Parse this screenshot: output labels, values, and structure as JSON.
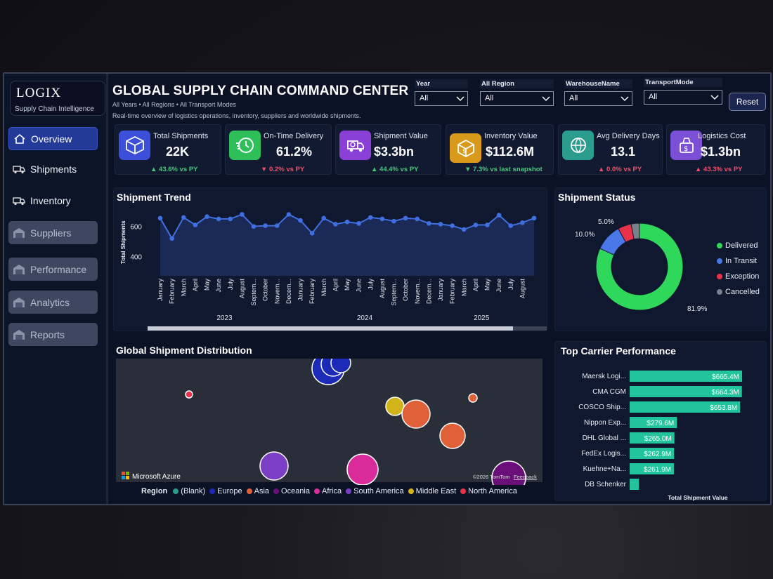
{
  "brand": {
    "title": "LOGIX",
    "subtitle": "Supply Chain Intelligence"
  },
  "nav": [
    {
      "label": "Overview",
      "state": "active",
      "icon": "home-icon"
    },
    {
      "label": "Shipments",
      "state": "normal",
      "icon": "truck-icon"
    },
    {
      "label": "Inventory",
      "state": "normal",
      "icon": "truck-icon"
    },
    {
      "label": "Suppliers",
      "state": "disabled",
      "icon": "warehouse-icon"
    },
    {
      "label": "Performance",
      "state": "disabled",
      "icon": "warehouse-icon"
    },
    {
      "label": "Analytics",
      "state": "disabled",
      "icon": "warehouse-icon"
    },
    {
      "label": "Reports",
      "state": "disabled",
      "icon": "warehouse-icon"
    }
  ],
  "header": {
    "title": "GLOBAL SUPPLY CHAIN COMMAND CENTER",
    "filters_summary": "All Years • All Regions • All Transport Modes",
    "description": "Real-time overview of logistics operations, inventory, suppliers and worldwide shipments."
  },
  "filters": [
    {
      "label": "Year",
      "value": "All"
    },
    {
      "label": "All Region",
      "value": "All"
    },
    {
      "label": "WarehouseName",
      "value": "All"
    },
    {
      "label": "TransportMode",
      "value": "All"
    }
  ],
  "reset_label": "Reset",
  "kpis": [
    {
      "label": "Total Shipments",
      "value": "22K",
      "delta": "▲ 43.6% vs PY",
      "trend": "up",
      "color": "#3b4fd8",
      "icon": "box-icon"
    },
    {
      "label": "On-Time Delivery",
      "value": "61.2%",
      "delta": "▼ 0.2% vs PY",
      "trend": "down",
      "color": "#2fbf58",
      "icon": "clock-icon"
    },
    {
      "label": "Shipment Value",
      "value": "$3.3bn",
      "delta": "▲ 44.4% vs PY",
      "trend": "up",
      "color": "#8a3fd6",
      "icon": "delivery-truck-icon"
    },
    {
      "label": "Inventory Value",
      "value": "$112.6M",
      "delta": "▼ 7.3% vs last snapshot",
      "trend": "down-green",
      "color": "#d99a1c",
      "icon": "package-icon"
    },
    {
      "label": "Avg Delivery Days",
      "value": "13.1",
      "delta": "▲ 0.0% vs PY",
      "trend": "down",
      "color": "#2a9d8f",
      "icon": "globe-clock-icon"
    },
    {
      "label": "Logistics Cost",
      "value": "$1.3bn",
      "delta": "▲ 43.3% vs PY",
      "trend": "down",
      "color": "#7b4fd6",
      "icon": "money-icon"
    }
  ],
  "trend": {
    "title": "Shipment Trend",
    "ylabel": "Total Shipments",
    "color": "#3f6fe0",
    "chart_data": {
      "type": "area",
      "y_ticks": [
        400,
        600
      ],
      "ylim": [
        300,
        720
      ],
      "years": [
        {
          "label": "2023",
          "months": [
            "January",
            "February",
            "March",
            "April",
            "May",
            "June",
            "July",
            "August",
            "Septem...",
            "October",
            "Novem...",
            "Decem..."
          ]
        },
        {
          "label": "2024",
          "months": [
            "January",
            "February",
            "March",
            "April",
            "May",
            "June",
            "July",
            "August",
            "Septem...",
            "October",
            "Novem...",
            "Decem..."
          ]
        },
        {
          "label": "2025",
          "months": [
            "January",
            "February",
            "March",
            "April",
            "May",
            "June",
            "July",
            "August"
          ]
        }
      ],
      "values": [
        660,
        525,
        665,
        615,
        670,
        655,
        655,
        685,
        605,
        610,
        610,
        685,
        645,
        560,
        660,
        620,
        635,
        625,
        665,
        655,
        640,
        660,
        655,
        625,
        620,
        610,
        585,
        615,
        615,
        680,
        610,
        630,
        660
      ]
    }
  },
  "status": {
    "title": "Shipment Status",
    "chart_data": {
      "type": "pie",
      "labels": [
        "Delivered",
        "In Transit",
        "Exception",
        "Cancelled"
      ],
      "values": [
        81.9,
        10.0,
        5.0,
        3.1
      ],
      "colors": [
        "#2fd85a",
        "#4a78e8",
        "#e8324a",
        "#7a7f8c"
      ],
      "data_labels": [
        "81.9%",
        "10.0%",
        "5.0%",
        ""
      ]
    }
  },
  "map": {
    "title": "Global Shipment Distribution",
    "attribution": "Microsoft Azure",
    "copyright": "©2026 TomTom",
    "feedback": "Feedback",
    "legend_title": "Region",
    "regions": [
      {
        "name": "(Blank)",
        "color": "#2a9d8f"
      },
      {
        "name": "Europe",
        "color": "#1b2bb8"
      },
      {
        "name": "Asia",
        "color": "#e0603a"
      },
      {
        "name": "Oceania",
        "color": "#6a0f7a"
      },
      {
        "name": "Africa",
        "color": "#d92c9a"
      },
      {
        "name": "South America",
        "color": "#7b3fc6"
      },
      {
        "name": "Middle East",
        "color": "#d2b41a"
      },
      {
        "name": "North America",
        "color": "#e8324a"
      }
    ]
  },
  "carriers": {
    "title": "Top Carrier Performance",
    "xlabel": "Total Shipment Value",
    "color": "#21c49c",
    "chart_data": {
      "type": "bar",
      "categories": [
        "Maersk Logi...",
        "CMA CGM",
        "COSCO Ship...",
        "Nippon Exp...",
        "DHL Global ...",
        "FedEx Logis...",
        "Kuehne+Na...",
        "DB Schenker"
      ],
      "values": [
        665.4,
        664.3,
        653.8,
        279.6,
        265.0,
        262.9,
        261.9,
        55
      ],
      "labels": [
        "$665.4M",
        "$664.3M",
        "$653.8M",
        "$279.6M",
        "$265.0M",
        "$262.9M",
        "$261.9M",
        ""
      ]
    }
  }
}
